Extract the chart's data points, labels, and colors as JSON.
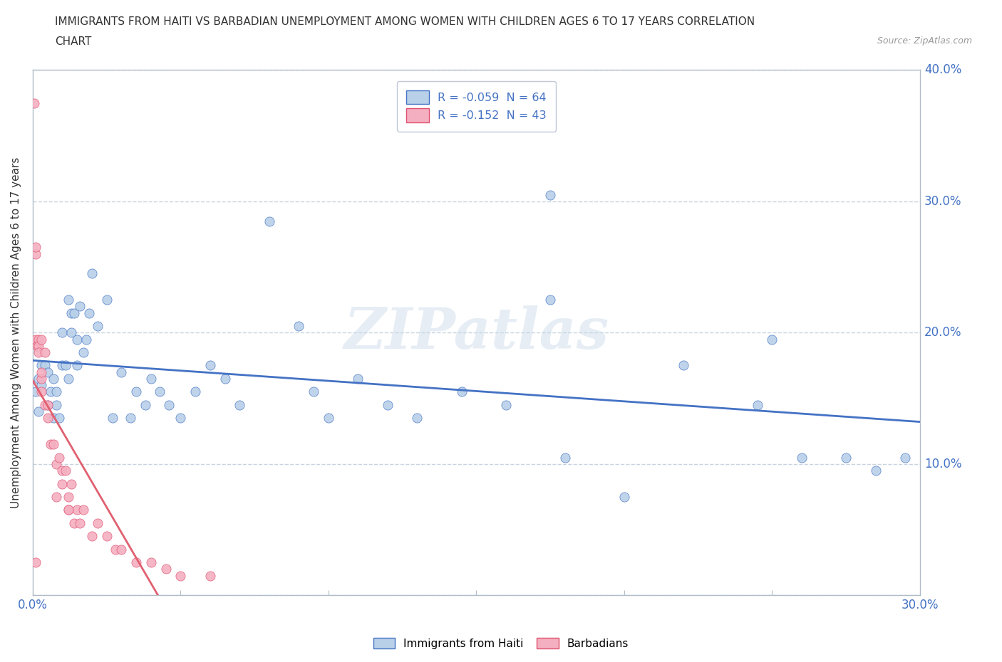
{
  "title_line1": "IMMIGRANTS FROM HAITI VS BARBADIAN UNEMPLOYMENT AMONG WOMEN WITH CHILDREN AGES 6 TO 17 YEARS CORRELATION",
  "title_line2": "CHART",
  "source": "Source: ZipAtlas.com",
  "xlabel": "Immigrants from Haiti",
  "ylabel": "Unemployment Among Women with Children Ages 6 to 17 years",
  "xlim": [
    0,
    0.3
  ],
  "ylim": [
    0,
    0.4
  ],
  "legend_r1": "R = -0.059  N = 64",
  "legend_r2": "R = -0.152  N = 43",
  "legend_color1": "#b8d0e8",
  "legend_color2": "#f4b0c0",
  "scatter_haiti_color": "#b8d0e8",
  "scatter_barbadian_color": "#f4b0c0",
  "trendline_haiti_color": "#4472c4",
  "trendline_barbadian_color": "#e06070",
  "watermark": "ZIPatlas",
  "haiti_x": [
    0.001,
    0.002,
    0.002,
    0.003,
    0.003,
    0.004,
    0.005,
    0.005,
    0.006,
    0.007,
    0.007,
    0.008,
    0.008,
    0.009,
    0.01,
    0.01,
    0.011,
    0.012,
    0.012,
    0.013,
    0.013,
    0.014,
    0.015,
    0.015,
    0.016,
    0.017,
    0.018,
    0.019,
    0.02,
    0.022,
    0.025,
    0.027,
    0.03,
    0.033,
    0.035,
    0.038,
    0.04,
    0.043,
    0.046,
    0.05,
    0.055,
    0.06,
    0.065,
    0.07,
    0.08,
    0.09,
    0.095,
    0.1,
    0.11,
    0.12,
    0.13,
    0.145,
    0.16,
    0.175,
    0.18,
    0.2,
    0.22,
    0.245,
    0.26,
    0.275,
    0.285,
    0.295,
    0.175,
    0.25
  ],
  "haiti_y": [
    0.155,
    0.165,
    0.14,
    0.16,
    0.175,
    0.175,
    0.17,
    0.145,
    0.155,
    0.135,
    0.165,
    0.145,
    0.155,
    0.135,
    0.2,
    0.175,
    0.175,
    0.165,
    0.225,
    0.215,
    0.2,
    0.215,
    0.195,
    0.175,
    0.22,
    0.185,
    0.195,
    0.215,
    0.245,
    0.205,
    0.225,
    0.135,
    0.17,
    0.135,
    0.155,
    0.145,
    0.165,
    0.155,
    0.145,
    0.135,
    0.155,
    0.175,
    0.165,
    0.145,
    0.285,
    0.205,
    0.155,
    0.135,
    0.165,
    0.145,
    0.135,
    0.155,
    0.145,
    0.225,
    0.105,
    0.075,
    0.175,
    0.145,
    0.105,
    0.105,
    0.095,
    0.105,
    0.305,
    0.195
  ],
  "barbadian_x": [
    0.0005,
    0.001,
    0.001,
    0.001,
    0.0015,
    0.002,
    0.002,
    0.002,
    0.003,
    0.003,
    0.003,
    0.004,
    0.004,
    0.005,
    0.005,
    0.006,
    0.007,
    0.008,
    0.009,
    0.01,
    0.01,
    0.011,
    0.012,
    0.012,
    0.013,
    0.014,
    0.015,
    0.016,
    0.017,
    0.02,
    0.022,
    0.025,
    0.028,
    0.03,
    0.035,
    0.04,
    0.045,
    0.05,
    0.06,
    0.008,
    0.012,
    0.003,
    0.001
  ],
  "barbadian_y": [
    0.375,
    0.26,
    0.265,
    0.195,
    0.19,
    0.195,
    0.19,
    0.185,
    0.195,
    0.165,
    0.17,
    0.185,
    0.145,
    0.145,
    0.135,
    0.115,
    0.115,
    0.1,
    0.105,
    0.085,
    0.095,
    0.095,
    0.075,
    0.065,
    0.085,
    0.055,
    0.065,
    0.055,
    0.065,
    0.045,
    0.055,
    0.045,
    0.035,
    0.035,
    0.025,
    0.025,
    0.02,
    0.015,
    0.015,
    0.075,
    0.065,
    0.155,
    0.025
  ]
}
